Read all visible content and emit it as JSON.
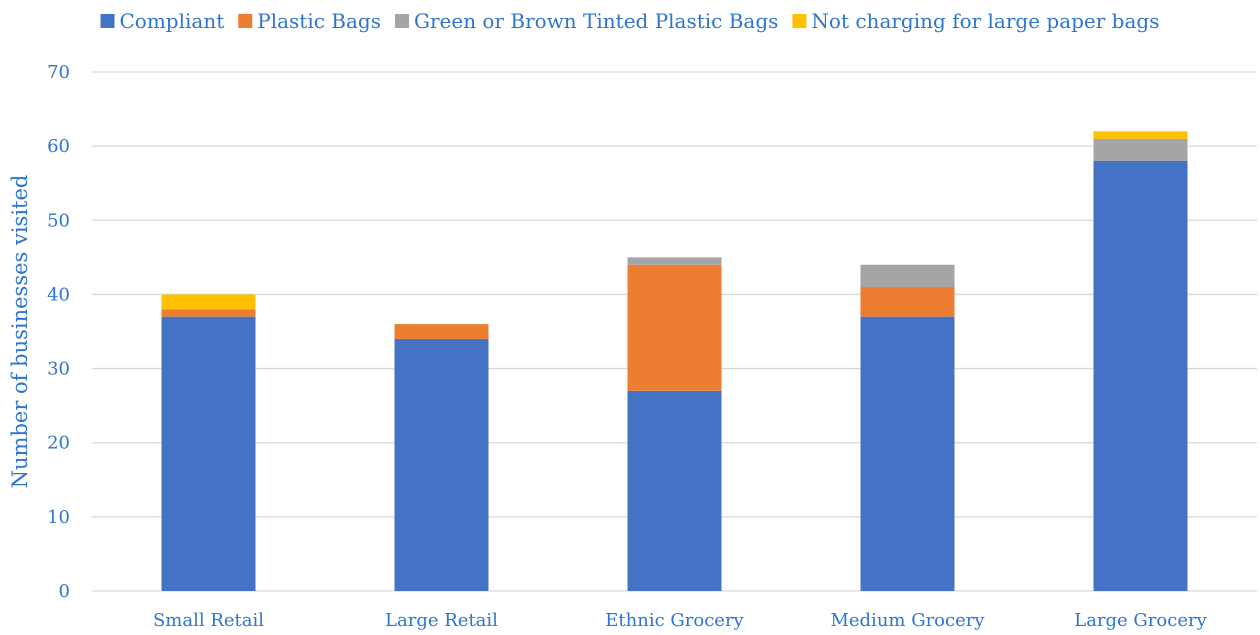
{
  "chart_data": {
    "type": "bar",
    "stacked": true,
    "title": "",
    "xlabel": "",
    "ylabel": "Number of businesses visited",
    "ylim": [
      0,
      70
    ],
    "yticks": [
      0,
      10,
      20,
      30,
      40,
      50,
      60,
      70
    ],
    "grid": true,
    "legend_position": "top",
    "categories": [
      "Small Retail",
      "Large Retail",
      "Ethnic Grocery",
      "Medium Grocery",
      "Large Grocery"
    ],
    "series": [
      {
        "name": "Compliant",
        "color": "#4472C4",
        "values": [
          37,
          34,
          27,
          37,
          58
        ]
      },
      {
        "name": "Plastic Bags",
        "color": "#ED7D31",
        "values": [
          1,
          2,
          17,
          4,
          0
        ]
      },
      {
        "name": "Green or Brown Tinted Plastic Bags",
        "color": "#A5A5A5",
        "values": [
          0,
          0,
          1,
          3,
          3
        ]
      },
      {
        "name": "Not charging for large paper bags",
        "color": "#FFC000",
        "values": [
          2,
          0,
          0,
          0,
          1
        ]
      }
    ]
  },
  "colors": {
    "text": "#2E75D0",
    "grid": "#D9D9D9"
  }
}
